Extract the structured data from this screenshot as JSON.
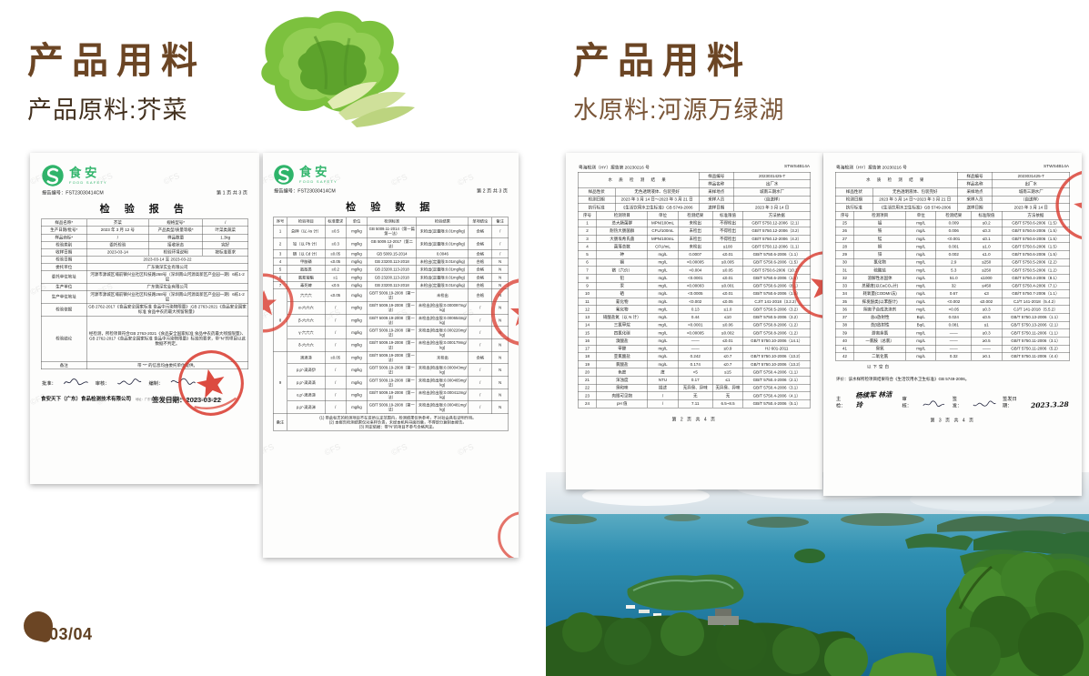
{
  "watermark": "©FS",
  "page_indicator": {
    "text": "03/04"
  },
  "left": {
    "title": "产品用料",
    "subtitle": "产品原料:芥菜",
    "report": {
      "brand": {
        "cn": "食安",
        "en": "FOOD SAFETY"
      },
      "report_no": "报告编号：FST23030414CM",
      "page_note": "第 1 页 共 3 页",
      "title": "检  验  报  告",
      "info_rows": [
        [
          {
            "t": "样品名称*",
            "cls": "lbl"
          },
          {
            "t": "芥菜"
          },
          {
            "t": "规格型号*",
            "cls": "lbl"
          },
          {
            "t": "/"
          }
        ],
        [
          {
            "t": "生产日期/批号*",
            "cls": "lbl"
          },
          {
            "t": "2023 年 3 月 12 号"
          },
          {
            "t": "产品类型/质量等级*",
            "cls": "lbl"
          },
          {
            "t": "叶菜类蔬菜"
          }
        ],
        [
          {
            "t": "样品商标*",
            "cls": "lbl"
          },
          {
            "t": "/"
          },
          {
            "t": "样品数量",
            "cls": "lbl"
          },
          {
            "t": "1.3kg"
          }
        ],
        [
          {
            "t": "检验类别",
            "cls": "lbl"
          },
          {
            "t": "委托检验"
          },
          {
            "t": "接收状态",
            "cls": "lbl"
          },
          {
            "t": "完好"
          }
        ],
        [
          {
            "t": "收样日期",
            "cls": "lbl"
          },
          {
            "t": "2023-03-14"
          },
          {
            "t": "检验环境说明",
            "cls": "lbl"
          },
          {
            "t": "按标准要求"
          }
        ],
        [
          {
            "t": "检验日期",
            "cls": "lbl"
          },
          {
            "t": "2023-03-14 至 2023-03-22",
            "s": 3,
            "cls": "lt"
          }
        ],
        [
          {
            "t": "委托单位",
            "cls": "lbl"
          },
          {
            "t": "广东微深实业有限公司",
            "s": 3,
            "cls": "lt"
          }
        ],
        [
          {
            "t": "委托单位地址",
            "cls": "lbl"
          },
          {
            "t": "河源市源城区埔前镇兴业社区科技路268号（深圳南山河源高新区产业园一期）6栋1-2层",
            "s": 3,
            "cls": "lt"
          }
        ],
        [
          {
            "t": "生产单位",
            "cls": "lbl"
          },
          {
            "t": "广东微深实业有限公司",
            "s": 3,
            "cls": "lt"
          }
        ],
        [
          {
            "t": "生产单位地址",
            "cls": "lbl"
          },
          {
            "t": "河源市源城区埔前镇兴业社区科技路268号（深圳南山河源高新区产业园一期）6栋1-2层",
            "s": 3,
            "cls": "lt"
          }
        ],
        [
          {
            "t": "检验依据",
            "cls": "lbl"
          },
          {
            "t": "GB 2762-2017《食品安全国家标准 食品中污染物限量》;GB 2763-2021《食品安全国家标准 食品中农药最大残留限量》",
            "s": 3,
            "cls": "lt"
          }
        ],
        [
          {
            "t": "检验结论",
            "cls": "lbl"
          },
          {
            "t": "经检测，所检项目符合GB 2763-2021《食品安全国家标准 食品中农药最大残留限量》、GB 2762-2017《食品安全国家标准 食品中污染物限量》标准的要求，带\"N\"的项目以此数据不判定。",
            "s": 3,
            "cls": "concl"
          }
        ],
        [
          {
            "t": "备注",
            "cls": "lbl"
          },
          {
            "t": "带 \"*\" 的信息均由委托单位提供。",
            "s": 3,
            "cls": "lt"
          }
        ]
      ],
      "issue_date": "签发日期：2023-03-22",
      "sign_labels": {
        "approve": "批准：",
        "review": "审核：",
        "compile": "编制："
      },
      "footer_company": "食安天下（广东）食品检测技术有限公司",
      "footer_contact": "地址：广东省东莞市南城区莞太路4号1栋　电话：0769-22998998"
    },
    "data_sheet": {
      "brand": {
        "cn": "食安",
        "en": "FOOD SAFETY"
      },
      "report_no": "报告编号：FST23030414CM",
      "page_note": "第 2 页 共 3 页",
      "title": "检  验  数  据",
      "rows": [
        [
          {
            "t": "序号",
            "cls": "lbl"
          },
          {
            "t": "检验项目",
            "cls": "lbl"
          },
          {
            "t": "标准要求",
            "cls": "lbl"
          },
          {
            "t": "单位",
            "cls": "lbl"
          },
          {
            "t": "检测标准",
            "cls": "lbl"
          },
          {
            "t": "检验结果",
            "cls": "lbl"
          },
          {
            "t": "单项结论",
            "cls": "lbl"
          },
          {
            "t": "备注",
            "cls": "lbl"
          }
        ],
        [
          "1",
          "总砷（以 As 计）",
          "≤0.5",
          "mg/kg",
          "GB 5009.11-2014（第一篇第一法）",
          "未检出(定量限:0.01mg/kg)",
          "合格",
          "/"
        ],
        [
          "2",
          "铅（以 Pb 计）",
          "≤0.3",
          "mg/kg",
          "GB 5009.12-2017（第二法）",
          "未检出(定量限:0.01mg/kg)",
          "合格",
          "/"
        ],
        [
          "3",
          "镉（以 Cd 计）",
          "≤0.05",
          "mg/kg",
          "GB 5009.15-2014",
          "0.0046",
          "合格",
          "/"
        ],
        [
          "4",
          "甲胺磷",
          "≤0.05",
          "mg/kg",
          "GB 23200.113-2018",
          "未检出(定量限:0.01mg/kg)",
          "合格",
          "N"
        ],
        [
          "5",
          "敌敌畏",
          "≤0.2",
          "mg/kg",
          "GB 23200.113-2018",
          "未检出(定量限:0.01mg/kg)",
          "合格",
          "N"
        ],
        [
          "6",
          "氯氰菊酯",
          "≤1",
          "mg/kg",
          "GB 23200.113-2018",
          "未检出(定量限:0.01mg/kg)",
          "合格",
          "N"
        ],
        [
          "7",
          "毒死蜱",
          "≤0.5",
          "mg/kg",
          "GB 23200.113-2018",
          "未检出(定量限:0.01mg/kg)",
          "合格",
          "N"
        ],
        [
          {
            "t": "8",
            "r": 5
          },
          "六六六",
          "≤0.05",
          "mg/kg",
          "GB/T 5009.19-2008（第一法）",
          "未检出",
          "合格",
          "N"
        ],
        [
          "α-六六六",
          "/",
          "mg/kg",
          "GB/T 5009.19-2008（第一法）",
          "未检出(检出限:0.000097mg/kg)",
          "/",
          "N"
        ],
        [
          "β-六六六",
          "/",
          "mg/kg",
          "GB/T 5009.19-2008（第一法）",
          "未检出(检出限:0.000654mg/kg)",
          "/",
          "N"
        ],
        [
          "γ-六六六",
          "/",
          "mg/kg",
          "GB/T 5009.19-2008（第一法）",
          "未检出(检出限:0.000226mg/kg)",
          "/",
          "N"
        ],
        [
          "δ-六六六",
          "/",
          "mg/kg",
          "GB/T 5009.19-2008（第一法）",
          "未检出(检出限:0.000179mg/kg)",
          "/",
          "N"
        ],
        [
          {
            "t": "9",
            "r": 5
          },
          "滴滴涕",
          "≤0.05",
          "mg/kg",
          "GB/T 5009.19-2008（第一法）",
          "未检出",
          "合格",
          "N"
        ],
        [
          "p,p'-滴滴伊",
          "/",
          "mg/kg",
          "GB/T 5009.19-2008（第一法）",
          "未检出(检出限:0.000043mg/kg)",
          "/",
          "N"
        ],
        [
          "p,p'-滴滴滴",
          "/",
          "mg/kg",
          "GB/T 5009.19-2008（第一法）",
          "未检出(检出限:0.000465mg/kg)",
          "/",
          "N"
        ],
        [
          "o,p'-滴滴涕",
          "/",
          "mg/kg",
          "GB/T 5009.19-2008（第一法）",
          "未检出(检出限:0.000412mg/kg)",
          "/",
          "N"
        ],
        [
          "p,p'-滴滴涕",
          "/",
          "mg/kg",
          "GB/T 5009.19-2008（第一法）",
          "未检出(检出限:0.000481mg/kg)",
          "/",
          "N"
        ],
        [
          {
            "t": "备注",
            "cls": "lbl"
          },
          {
            "t": "(1) 带此标志的检测项目不在资质认定范围内，检测结果仅供参考，不对社会具有证明作用。\n(2) 本报告检测结果仅对来样负责，未经本机构书面同意，不得部分复制本报告。\n(3) 判定依据：带\"N\"的项目不参与合格判定。",
            "s": 7,
            "cls": "notes"
          }
        ]
      ]
    }
  },
  "right": {
    "title": "产品用料",
    "subtitle": "水原料:河源万绿湖",
    "water_report_p2": {
      "header_left": "粤海检测（HY）报告第 20230216 号",
      "header_right": "STWS4B14A",
      "info_rows": [
        [
          {
            "t": "水 质 检 测 结 果",
            "s": 2,
            "r": 2,
            "cls": "wtitle"
          },
          {
            "t": "样品编号",
            "cls": "lbl"
          },
          {
            "t": "2023031425-T"
          }
        ],
        [
          {
            "t": "样品名称",
            "cls": "lbl"
          },
          {
            "t": "出厂水"
          }
        ],
        [
          {
            "t": "样品性状",
            "cls": "lbl"
          },
          {
            "t": "无色透明液体、包装完好"
          },
          {
            "t": "采样地点",
            "cls": "lbl"
          },
          {
            "t": "城南三期水厂"
          }
        ],
        [
          {
            "t": "检测日期",
            "cls": "lbl"
          },
          {
            "t": "2023 年 3 月 14 日～2023 年 3 月 21 日"
          },
          {
            "t": "采样人员",
            "cls": "lbl"
          },
          {
            "t": "（自送样）"
          }
        ],
        [
          {
            "t": "执行标准",
            "cls": "lbl"
          },
          {
            "t": "《生活饮用水卫生标准》GB 5749-2006"
          },
          {
            "t": "送样日期",
            "cls": "lbl"
          },
          {
            "t": "2023 年 3 月 14 日"
          }
        ]
      ],
      "rows": [
        [
          {
            "t": "序号",
            "cls": "lbl"
          },
          {
            "t": "检测项目",
            "cls": "lbl"
          },
          {
            "t": "单位",
            "cls": "lbl"
          },
          {
            "t": "检测结果",
            "cls": "lbl"
          },
          {
            "t": "标准限值",
            "cls": "lbl"
          },
          {
            "t": "方法依据",
            "cls": "lbl"
          }
        ],
        [
          "1",
          "总大肠菌群",
          "MPN/100mL",
          "未检出",
          "不得检出",
          "GB/T 5750.12-2006（2.1）"
        ],
        [
          "2",
          "耐热大肠菌群",
          "CFU/100mL",
          "未检出",
          "不得检出",
          "GB/T 5750.12-2006（3.2）"
        ],
        [
          "3",
          "大肠埃希氏菌",
          "MPN/100mL",
          "未检出",
          "不得检出",
          "GB/T 5750.12-2006（4.2）"
        ],
        [
          "4",
          "菌落总数",
          "CFU/mL",
          "未检出",
          "≤100",
          "GB/T 5750.12-2006（1.1）"
        ],
        [
          "5",
          "砷",
          "mg/L",
          "0.0007",
          "≤0.01",
          "GB/T 5750.6-2006（1.1）"
        ],
        [
          "6",
          "镉",
          "mg/L",
          "<0.00005",
          "≤0.005",
          "GB/T 5750.6-2006（1.5）"
        ],
        [
          "7",
          "铬（六价）",
          "mg/L",
          "<0.004",
          "≤0.05",
          "GB/T 5750.6-2006（10.1）"
        ],
        [
          "8",
          "铅",
          "mg/L",
          "<0.0001",
          "≤0.01",
          "GB/T 5750.6-2006（1.5）"
        ],
        [
          "9",
          "汞",
          "mg/L",
          "<0.00003",
          "≤0.001",
          "GB/T 5750.6-2006（8.1）"
        ],
        [
          "10",
          "硒",
          "mg/L",
          "<0.0005",
          "≤0.01",
          "GB/T 5750.6-2006（1.5）"
        ],
        [
          "11",
          "氰化物",
          "mg/L",
          "<0.002",
          "≤0.05",
          "CJ/T 141-2018（3.2.2）"
        ],
        [
          "12",
          "氟化物",
          "mg/L",
          "0.13",
          "≤1.0",
          "GB/T 5750.5-2006（3.2）"
        ],
        [
          "13",
          "硝酸盐氮（以 N 计）",
          "mg/L",
          "0.44",
          "≤10",
          "GB/T 5750.5-2006（3.2）"
        ],
        [
          "14",
          "三氯甲烷",
          "mg/L",
          "<0.0001",
          "≤0.06",
          "GB/T 5750.8-2006（1.2）"
        ],
        [
          "15",
          "四氯化碳",
          "mg/L",
          "<0.00005",
          "≤0.002",
          "GB/T 5750.8-2006（1.2）"
        ],
        [
          "16",
          "溴酸盐",
          "mg/L",
          "——",
          "≤0.01",
          "GB/T 5750.10-2006（14.1）"
        ],
        [
          "17",
          "甲醛",
          "mg/L",
          "——",
          "≤0.9",
          "HJ 601-2011"
        ],
        [
          "18",
          "亚氯酸盐",
          "mg/L",
          "0.242",
          "≤0.7",
          "GB/T 5750.10-2006（13.2）"
        ],
        [
          "19",
          "氯酸盐",
          "mg/L",
          "0.174",
          "≤0.7",
          "GB/T 5750.10-2006（13.2）"
        ],
        [
          "20",
          "色度",
          "度",
          "<5",
          "≤15",
          "GB/T 5750.4-2006（1.1）"
        ],
        [
          "21",
          "浑浊度",
          "NTU",
          "0.17",
          "≤1",
          "GB/T 5750.4-2006（2.1）"
        ],
        [
          "22",
          "臭和味",
          "描述",
          "无异臭、异味",
          "无异臭、异味",
          "GB/T 5750.4-2006（3.1）"
        ],
        [
          "23",
          "肉眼可见物",
          "/",
          "无",
          "无",
          "GB/T 5750.4-2006（4.1）"
        ],
        [
          "24",
          "pH 值",
          "/",
          "7.11",
          "6.5~8.5",
          "GB/T 5750.4-2006（5.1）"
        ]
      ],
      "page_foot": "第 2 页 共 4 页"
    },
    "water_report_p3": {
      "header_left": "粤海检测（HY）报告第 20230216 号",
      "header_right": "STWS4B14A",
      "info_rows": [
        [
          {
            "t": "水 质 检 测 结 果",
            "s": 2,
            "r": 2,
            "cls": "wtitle"
          },
          {
            "t": "样品编号",
            "cls": "lbl"
          },
          {
            "t": "2023031425-T"
          }
        ],
        [
          {
            "t": "样品名称",
            "cls": "lbl"
          },
          {
            "t": "出厂水"
          }
        ],
        [
          {
            "t": "样品性状",
            "cls": "lbl"
          },
          {
            "t": "无色透明液体、包装完好"
          },
          {
            "t": "采样地点",
            "cls": "lbl"
          },
          {
            "t": "城南三期水厂"
          }
        ],
        [
          {
            "t": "检测日期",
            "cls": "lbl"
          },
          {
            "t": "2023 年 3 月 14 日～2023 年 3 月 21 日"
          },
          {
            "t": "采样人员",
            "cls": "lbl"
          },
          {
            "t": "（自送样）"
          }
        ],
        [
          {
            "t": "执行标准",
            "cls": "lbl"
          },
          {
            "t": "《生活饮用水卫生标准》GB 5749-2006"
          },
          {
            "t": "送样日期",
            "cls": "lbl"
          },
          {
            "t": "2023 年 3 月 14 日"
          }
        ]
      ],
      "rows": [
        [
          {
            "t": "序号",
            "cls": "lbl"
          },
          {
            "t": "检测项目",
            "cls": "lbl"
          },
          {
            "t": "单位",
            "cls": "lbl"
          },
          {
            "t": "检测结果",
            "cls": "lbl"
          },
          {
            "t": "标准限值",
            "cls": "lbl"
          },
          {
            "t": "方法依据",
            "cls": "lbl"
          }
        ],
        [
          "25",
          "铝",
          "mg/L",
          "0.009",
          "≤0.2",
          "GB/T 5750.6-2006（1.5）"
        ],
        [
          "26",
          "铁",
          "mg/L",
          "0.006",
          "≤0.3",
          "GB/T 5750.6-2006（1.5）"
        ],
        [
          "27",
          "锰",
          "mg/L",
          "<0.001",
          "≤0.1",
          "GB/T 5750.6-2006（1.5）"
        ],
        [
          "28",
          "铜",
          "mg/L",
          "0.001",
          "≤1.0",
          "GB/T 5750.6-2006（1.5）"
        ],
        [
          "29",
          "锌",
          "mg/L",
          "0.002",
          "≤1.0",
          "GB/T 5750.6-2006（1.5）"
        ],
        [
          "30",
          "氯化物",
          "mg/L",
          "2.9",
          "≤250",
          "GB/T 5750.5-2006（2.2）"
        ],
        [
          "31",
          "硫酸盐",
          "mg/L",
          "5.3",
          "≤250",
          "GB/T 5750.5-2006（1.2）"
        ],
        [
          "32",
          "溶解性总固体",
          "mg/L",
          "51.0",
          "≤1000",
          "GB/T 5750.4-2006（8.1）"
        ],
        [
          "33",
          "总硬度(以CaCO₃计)",
          "mg/L",
          "32",
          "≤450",
          "GB/T 5750.4-2006（7.1）"
        ],
        [
          "34",
          "耗氧量(CODMn法)",
          "mg/L",
          "0.67",
          "≤3",
          "GB/T 5750.7-2006（1.1）"
        ],
        [
          "35",
          "挥发酚类(以苯酚计)",
          "mg/L",
          "<0.002",
          "≤0.002",
          "CJ/T 141-2018（5.4.2）"
        ],
        [
          "36",
          "阴离子合成洗涤剂",
          "mg/L",
          "<0.05",
          "≤0.3",
          "CJ/T 141-2018（5.5.2）"
        ],
        [
          "37",
          "总α放射性",
          "Bq/L",
          "0.024",
          "≤0.5",
          "GB/T 5750.13-2006（1.1）"
        ],
        [
          "38",
          "总β放射性",
          "Bq/L",
          "0.081",
          "≤1",
          "GB/T 5750.13-2006（2.1）"
        ],
        [
          "39",
          "游离余氯",
          "mg/L",
          "——",
          "≥0.3",
          "GB/T 5750.11-2006（1.1）"
        ],
        [
          "40",
          "一氯胺（总氯）",
          "mg/L",
          "——",
          "≥0.5",
          "GB/T 5750.11-2006（3.1）"
        ],
        [
          "41",
          "臭氧",
          "mg/L",
          "——",
          "——",
          "GB/T 5750.11-2006（5.2）"
        ],
        [
          "42",
          "二氧化氯",
          "mg/L",
          "0.32",
          "≥0.1",
          "GB/T 5750.11-2006（4.4）"
        ]
      ],
      "blank_note": "以下空白",
      "evaluation": "评价：该水样所检项目结果符合《生活饮用水卫生标准》GB 5749-2006。",
      "sign": {
        "main_label": "主检：",
        "main_names": "杨续军  林洁玲",
        "review_label": "审核：",
        "issue_label": "签发：",
        "date_label": "签发日期：",
        "date": "2023.3.28"
      },
      "page_foot": "第 3 页 共 4 页"
    }
  }
}
